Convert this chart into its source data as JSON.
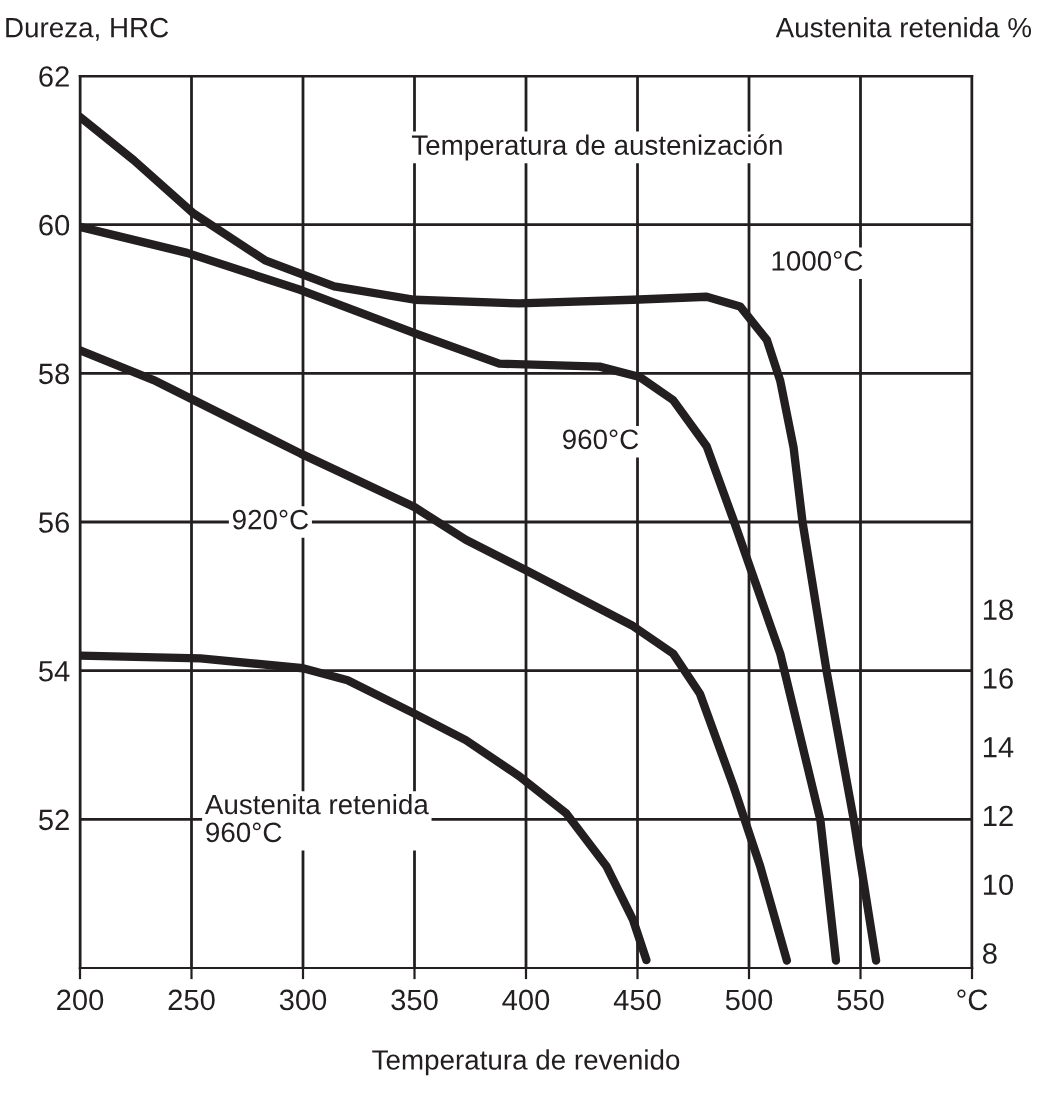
{
  "chart_data": {
    "type": "line",
    "xlabel": "Temperatura de revenido",
    "ylabel": "Dureza, HRC",
    "y2label": "Austenita retenida %",
    "annotations": [
      "Temperatura de austenización"
    ],
    "xlim": [
      200,
      600
    ],
    "xticks": [
      200,
      250,
      300,
      350,
      400,
      450,
      500,
      550,
      {
        "value": 600,
        "label": "°C"
      }
    ],
    "ylim": [
      50,
      62
    ],
    "yticks": [
      52,
      54,
      56,
      58,
      60,
      62
    ],
    "y2lim": [
      7.65,
      33.6
    ],
    "y2ticks": [
      8,
      10,
      12,
      14,
      16,
      18
    ],
    "grid": true,
    "legend": false,
    "marker": "none",
    "line_style": "solid",
    "series": [
      {
        "name": "1000°C",
        "color": "#231f20",
        "x": [
          200,
          224,
          251,
          283,
          314,
          350,
          397,
          448,
          481,
          496,
          508,
          514,
          520,
          524,
          535,
          547,
          557
        ],
        "values": [
          61.45,
          60.87,
          60.15,
          59.52,
          59.17,
          58.99,
          58.94,
          58.99,
          59.03,
          58.9,
          58.45,
          57.9,
          57.0,
          56.0,
          53.96,
          51.99,
          50.1
        ]
      },
      {
        "name": "960°C",
        "color": "#231f20",
        "x": [
          200,
          248,
          299,
          350,
          388,
          433,
          451,
          466,
          481,
          493,
          514,
          532,
          539
        ],
        "values": [
          59.97,
          59.62,
          59.12,
          58.54,
          58.13,
          58.09,
          57.95,
          57.64,
          57.02,
          56.03,
          54.23,
          51.99,
          50.1
        ]
      },
      {
        "name": "920°C",
        "color": "#231f20",
        "x": [
          200,
          233,
          299,
          350,
          373,
          400,
          448,
          466,
          478,
          493,
          505,
          517
        ],
        "values": [
          58.31,
          57.91,
          56.92,
          56.2,
          55.76,
          55.35,
          54.6,
          54.23,
          53.69,
          52.45,
          51.37,
          50.1
        ]
      },
      {
        "name": "Austenita retenida\n960°C",
        "color": "#231f20",
        "axis": "y2",
        "x": [
          200,
          254,
          300,
          320,
          350,
          373,
          397,
          418,
          436,
          448,
          454
        ],
        "values": [
          16.74,
          16.66,
          16.37,
          16.02,
          15.05,
          14.28,
          13.23,
          12.15,
          10.62,
          9.05,
          7.88
        ]
      }
    ]
  }
}
